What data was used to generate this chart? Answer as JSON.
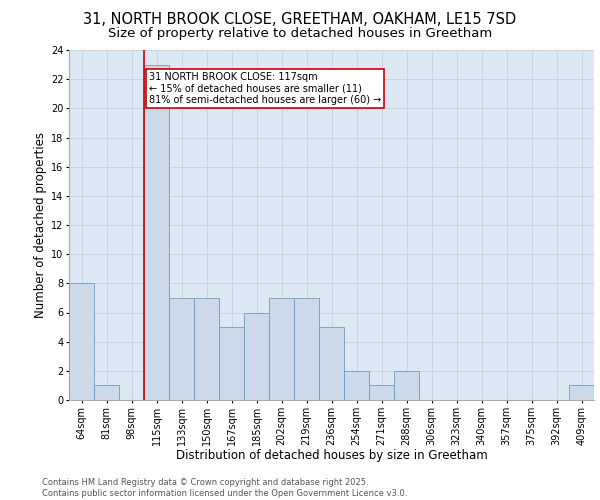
{
  "title_line1": "31, NORTH BROOK CLOSE, GREETHAM, OAKHAM, LE15 7SD",
  "title_line2": "Size of property relative to detached houses in Greetham",
  "xlabel": "Distribution of detached houses by size in Greetham",
  "ylabel": "Number of detached properties",
  "categories": [
    "64sqm",
    "81sqm",
    "98sqm",
    "115sqm",
    "133sqm",
    "150sqm",
    "167sqm",
    "185sqm",
    "202sqm",
    "219sqm",
    "236sqm",
    "254sqm",
    "271sqm",
    "288sqm",
    "306sqm",
    "323sqm",
    "340sqm",
    "357sqm",
    "375sqm",
    "392sqm",
    "409sqm"
  ],
  "values": [
    8,
    1,
    0,
    23,
    7,
    7,
    5,
    6,
    7,
    7,
    5,
    2,
    1,
    2,
    0,
    0,
    0,
    0,
    0,
    0,
    1
  ],
  "bar_color": "#ccd9e8",
  "bar_edge_color": "#7099bb",
  "red_line_index": 3,
  "annotation_text": "31 NORTH BROOK CLOSE: 117sqm\n← 15% of detached houses are smaller (11)\n81% of semi-detached houses are larger (60) →",
  "annotation_box_color": "#ffffff",
  "annotation_box_edge_color": "#cc0000",
  "red_line_color": "#cc0000",
  "grid_color": "#c8d4e4",
  "background_color": "#dce8f4",
  "footer_text": "Contains HM Land Registry data © Crown copyright and database right 2025.\nContains public sector information licensed under the Open Government Licence v3.0.",
  "ylim": [
    0,
    24
  ],
  "yticks": [
    0,
    2,
    4,
    6,
    8,
    10,
    12,
    14,
    16,
    18,
    20,
    22,
    24
  ],
  "title_fontsize": 10.5,
  "subtitle_fontsize": 9.5,
  "axis_label_fontsize": 8.5,
  "tick_fontsize": 7,
  "annotation_fontsize": 7,
  "footer_fontsize": 6
}
